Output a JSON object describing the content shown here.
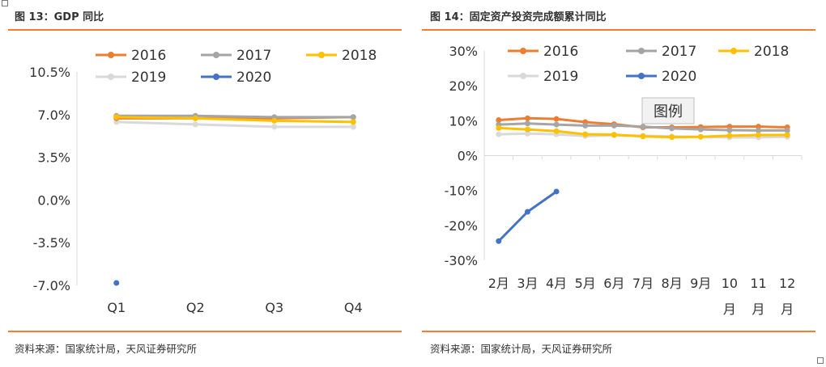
{
  "colors": {
    "2016": "#ED7D31",
    "2017": "#A5A5A5",
    "2018": "#FFC000",
    "2019": "#D9D9D9",
    "2020": "#4472C4",
    "accent_rule": "#F08030"
  },
  "chart_data": [
    {
      "type": "line",
      "title": "图 13：GDP 同比",
      "source": "资料来源：国家统计局，天风证券研究所",
      "categories": [
        "Q1",
        "Q2",
        "Q3",
        "Q4"
      ],
      "ytick_labels": [
        "10.5%",
        "7.0%",
        "3.5%",
        "0.0%",
        "-3.5%",
        "-7.0%"
      ],
      "ylim": [
        -7.0,
        10.5
      ],
      "legend_position": "top",
      "series": [
        {
          "name": "2016",
          "values": [
            6.7,
            6.7,
            6.7,
            6.8
          ]
        },
        {
          "name": "2017",
          "values": [
            6.9,
            6.9,
            6.8,
            6.8
          ]
        },
        {
          "name": "2018",
          "values": [
            6.8,
            6.7,
            6.5,
            6.4
          ]
        },
        {
          "name": "2019",
          "values": [
            6.4,
            6.2,
            6.0,
            6.0
          ]
        },
        {
          "name": "2020",
          "values": [
            -6.8,
            null,
            null,
            null
          ]
        }
      ]
    },
    {
      "type": "line",
      "title": "图 14：固定资产投资完成额累计同比",
      "source": "资料来源：国家统计局，天风证券研究所",
      "categories": [
        "2月",
        "3月",
        "4月",
        "5月",
        "6月",
        "7月",
        "8月",
        "9月",
        "10月",
        "11月",
        "12月"
      ],
      "ytick_labels": [
        "30%",
        "20%",
        "10%",
        "0%",
        "-10%",
        "-20%",
        "-30%"
      ],
      "ylim": [
        -30,
        30
      ],
      "legend_position": "top",
      "tooltip": "图例",
      "series": [
        {
          "name": "2016",
          "values": [
            10.2,
            10.7,
            10.5,
            9.6,
            9.0,
            8.1,
            8.1,
            8.2,
            8.3,
            8.3,
            8.1
          ]
        },
        {
          "name": "2017",
          "values": [
            8.9,
            9.2,
            8.9,
            8.6,
            8.6,
            8.3,
            7.8,
            7.5,
            7.3,
            7.2,
            7.2
          ]
        },
        {
          "name": "2018",
          "values": [
            7.9,
            7.5,
            7.0,
            6.1,
            6.0,
            5.5,
            5.3,
            5.4,
            5.7,
            5.9,
            5.9
          ]
        },
        {
          "name": "2019",
          "values": [
            6.1,
            6.3,
            6.1,
            5.6,
            5.8,
            5.7,
            5.5,
            5.4,
            5.2,
            5.2,
            5.4
          ]
        },
        {
          "name": "2020",
          "values": [
            -24.5,
            -16.1,
            -10.3,
            null,
            null,
            null,
            null,
            null,
            null,
            null,
            null
          ]
        }
      ]
    }
  ]
}
